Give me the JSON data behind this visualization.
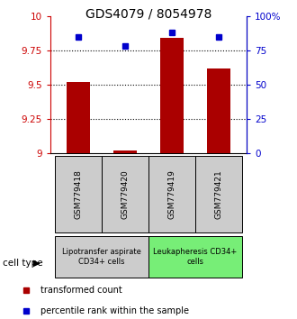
{
  "title": "GDS4079 / 8054978",
  "samples": [
    "GSM779418",
    "GSM779420",
    "GSM779419",
    "GSM779421"
  ],
  "red_values": [
    9.52,
    9.02,
    9.84,
    9.62
  ],
  "blue_values": [
    85,
    78,
    88,
    85
  ],
  "ylim_left": [
    9.0,
    10.0
  ],
  "ylim_right": [
    0,
    100
  ],
  "yticks_left": [
    9.0,
    9.25,
    9.5,
    9.75,
    10.0
  ],
  "yticks_right": [
    0,
    25,
    50,
    75,
    100
  ],
  "ytick_labels_left": [
    "9",
    "9.25",
    "9.5",
    "9.75",
    "10"
  ],
  "ytick_labels_right": [
    "0",
    "25",
    "50",
    "75",
    "100%"
  ],
  "hlines": [
    9.25,
    9.5,
    9.75
  ],
  "bar_color": "#aa0000",
  "dot_color": "#0000cc",
  "bar_width": 0.5,
  "groups": [
    {
      "label": "Lipotransfer aspirate\nCD34+ cells",
      "indices": [
        0,
        1
      ],
      "color": "#cccccc"
    },
    {
      "label": "Leukapheresis CD34+\ncells",
      "indices": [
        2,
        3
      ],
      "color": "#77ee77"
    }
  ],
  "cell_type_label": "cell type",
  "legend_red": "transformed count",
  "legend_blue": "percentile rank within the sample",
  "title_fontsize": 10,
  "tick_fontsize": 7.5,
  "sample_box_bg": "#cccccc",
  "left_color": "#cc0000",
  "right_color": "#0000cc"
}
